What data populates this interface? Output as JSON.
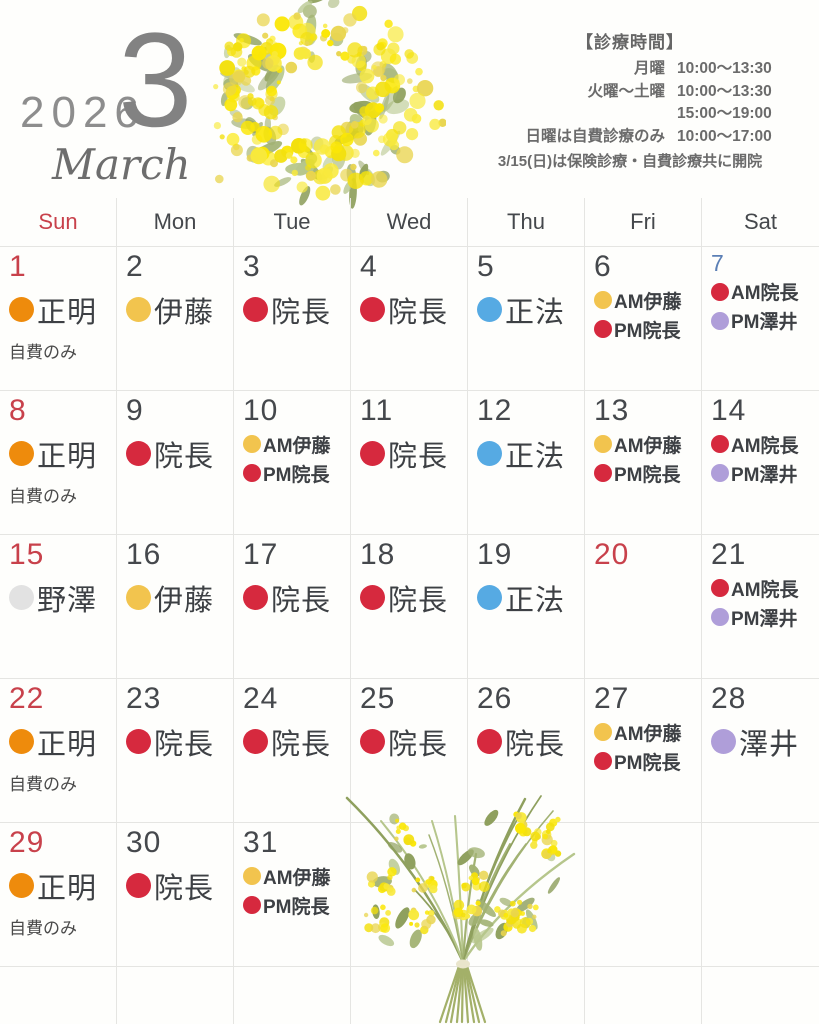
{
  "header": {
    "year": "2026",
    "month_number": "3",
    "month_name": "March"
  },
  "hours": {
    "title": "【診療時間】",
    "rows": [
      {
        "label": "月曜",
        "time": "10:00〜13:30"
      },
      {
        "label": "火曜〜土曜",
        "time": "10:00〜13:30"
      },
      {
        "label": "",
        "time": "15:00〜19:00"
      },
      {
        "label": "日曜は自費診療のみ",
        "time": "10:00〜17:00"
      }
    ],
    "note": "3/15(日)は保険診療・自費診療共に開院"
  },
  "weekdays": [
    "Sun",
    "Mon",
    "Tue",
    "Wed",
    "Thu",
    "Fri",
    "Sat"
  ],
  "palette": {
    "red": "#d6293e",
    "orange": "#ee8b0c",
    "yellow": "#f2c44e",
    "blue": "#56aae3",
    "purple": "#af9ed9",
    "gray": "#e2e2e2",
    "sunday_red": "#c8414b",
    "number_gray": "#45484c",
    "saturday_blue": "#5b7fb5"
  },
  "days": [
    {
      "num": "1",
      "num_color": "red",
      "entries": [
        {
          "dot": "orange",
          "label": "正明",
          "size": "large"
        }
      ],
      "note": "自費のみ"
    },
    {
      "num": "2",
      "num_color": "gray",
      "entries": [
        {
          "dot": "yellow",
          "label": "伊藤",
          "size": "large"
        }
      ]
    },
    {
      "num": "3",
      "num_color": "gray",
      "entries": [
        {
          "dot": "red",
          "label": "院長",
          "size": "large"
        }
      ]
    },
    {
      "num": "4",
      "num_color": "gray",
      "entries": [
        {
          "dot": "red",
          "label": "院長",
          "size": "large"
        }
      ]
    },
    {
      "num": "5",
      "num_color": "gray",
      "entries": [
        {
          "dot": "blue",
          "label": "正法",
          "size": "large"
        }
      ]
    },
    {
      "num": "6",
      "num_color": "gray",
      "entries": [
        {
          "dot": "yellow",
          "label": "AM伊藤",
          "size": "small"
        },
        {
          "dot": "red",
          "label": "PM院長",
          "size": "small"
        }
      ]
    },
    {
      "num": "7",
      "num_color": "blue",
      "entries": [
        {
          "dot": "red",
          "label": "AM院長",
          "size": "small"
        },
        {
          "dot": "purple",
          "label": "PM澤井",
          "size": "small"
        }
      ]
    },
    {
      "num": "8",
      "num_color": "red",
      "entries": [
        {
          "dot": "orange",
          "label": "正明",
          "size": "large"
        }
      ],
      "note": "自費のみ"
    },
    {
      "num": "9",
      "num_color": "gray",
      "entries": [
        {
          "dot": "red",
          "label": "院長",
          "size": "large"
        }
      ]
    },
    {
      "num": "10",
      "num_color": "gray",
      "entries": [
        {
          "dot": "yellow",
          "label": "AM伊藤",
          "size": "small"
        },
        {
          "dot": "red",
          "label": "PM院長",
          "size": "small"
        }
      ]
    },
    {
      "num": "11",
      "num_color": "gray",
      "entries": [
        {
          "dot": "red",
          "label": "院長",
          "size": "large"
        }
      ]
    },
    {
      "num": "12",
      "num_color": "gray",
      "entries": [
        {
          "dot": "blue",
          "label": "正法",
          "size": "large"
        }
      ]
    },
    {
      "num": "13",
      "num_color": "gray",
      "entries": [
        {
          "dot": "yellow",
          "label": "AM伊藤",
          "size": "small"
        },
        {
          "dot": "red",
          "label": "PM院長",
          "size": "small"
        }
      ]
    },
    {
      "num": "14",
      "num_color": "gray",
      "entries": [
        {
          "dot": "red",
          "label": "AM院長",
          "size": "small"
        },
        {
          "dot": "purple",
          "label": "PM澤井",
          "size": "small"
        }
      ]
    },
    {
      "num": "15",
      "num_color": "red",
      "entries": [
        {
          "dot": "gray",
          "label": "野澤",
          "size": "large"
        }
      ]
    },
    {
      "num": "16",
      "num_color": "gray",
      "entries": [
        {
          "dot": "yellow",
          "label": "伊藤",
          "size": "large"
        }
      ]
    },
    {
      "num": "17",
      "num_color": "gray",
      "entries": [
        {
          "dot": "red",
          "label": "院長",
          "size": "large"
        }
      ]
    },
    {
      "num": "18",
      "num_color": "gray",
      "entries": [
        {
          "dot": "red",
          "label": "院長",
          "size": "large"
        }
      ]
    },
    {
      "num": "19",
      "num_color": "gray",
      "entries": [
        {
          "dot": "blue",
          "label": "正法",
          "size": "large"
        }
      ]
    },
    {
      "num": "20",
      "num_color": "red",
      "entries": []
    },
    {
      "num": "21",
      "num_color": "gray",
      "entries": [
        {
          "dot": "red",
          "label": "AM院長",
          "size": "small"
        },
        {
          "dot": "purple",
          "label": "PM澤井",
          "size": "small"
        }
      ]
    },
    {
      "num": "22",
      "num_color": "red",
      "entries": [
        {
          "dot": "orange",
          "label": "正明",
          "size": "large"
        }
      ],
      "note": "自費のみ"
    },
    {
      "num": "23",
      "num_color": "gray",
      "entries": [
        {
          "dot": "red",
          "label": "院長",
          "size": "large"
        }
      ]
    },
    {
      "num": "24",
      "num_color": "gray",
      "entries": [
        {
          "dot": "red",
          "label": "院長",
          "size": "large"
        }
      ]
    },
    {
      "num": "25",
      "num_color": "gray",
      "entries": [
        {
          "dot": "red",
          "label": "院長",
          "size": "large"
        }
      ]
    },
    {
      "num": "26",
      "num_color": "gray",
      "entries": [
        {
          "dot": "red",
          "label": "院長",
          "size": "large"
        }
      ]
    },
    {
      "num": "27",
      "num_color": "gray",
      "entries": [
        {
          "dot": "yellow",
          "label": "AM伊藤",
          "size": "small"
        },
        {
          "dot": "red",
          "label": "PM院長",
          "size": "small"
        }
      ]
    },
    {
      "num": "28",
      "num_color": "gray",
      "entries": [
        {
          "dot": "purple",
          "label": "澤井",
          "size": "large"
        }
      ]
    },
    {
      "num": "29",
      "num_color": "red",
      "entries": [
        {
          "dot": "orange",
          "label": "正明",
          "size": "large"
        }
      ],
      "note": "自費のみ"
    },
    {
      "num": "30",
      "num_color": "gray",
      "entries": [
        {
          "dot": "red",
          "label": "院長",
          "size": "large"
        }
      ]
    },
    {
      "num": "31",
      "num_color": "gray",
      "entries": [
        {
          "dot": "yellow",
          "label": "AM伊藤",
          "size": "small"
        },
        {
          "dot": "red",
          "label": "PM院長",
          "size": "small"
        }
      ]
    }
  ]
}
